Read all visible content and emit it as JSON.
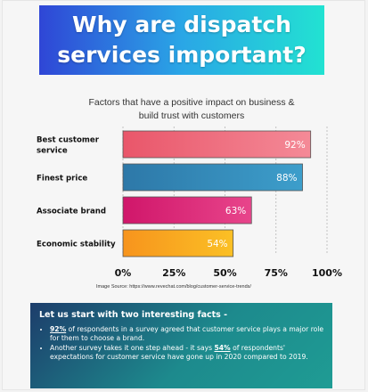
{
  "header": {
    "title": "Why are dispatch\nservices important?",
    "subtitle": "Factors that have a positive impact on business &\nbuild trust with customers"
  },
  "chart_data": {
    "type": "bar",
    "orientation": "horizontal",
    "categories": [
      "Best customer service",
      "Finest price",
      "Associate brand",
      "Economic stability"
    ],
    "category_labels": [
      [
        "Best customer",
        "service"
      ],
      [
        "Finest price"
      ],
      [
        "Associate brand"
      ],
      [
        "Economic stability"
      ]
    ],
    "values": [
      92,
      88,
      63,
      54
    ],
    "data_labels": [
      "92%",
      "88%",
      "63%",
      "54%"
    ],
    "xlim": [
      0,
      100
    ],
    "xticks": [
      0,
      25,
      50,
      75,
      100
    ],
    "xtick_labels": [
      "0%",
      "25%",
      "50%",
      "75%",
      "100%"
    ],
    "grid": "vertical dashed lines",
    "bar_colors": [
      [
        "#e9566a",
        "#f48a97"
      ],
      [
        "#2d78a8",
        "#3d9ecb"
      ],
      [
        "#d0166a",
        "#e8458b"
      ],
      [
        "#f7941d",
        "#fbc025"
      ]
    ]
  },
  "source": "Image Source: https://www.revechat.com/blog/customer-service-trends/",
  "facts": {
    "heading": "Let us start with two interesting facts -",
    "items": [
      {
        "highlight": "92%",
        "text": " of respondents in a survey agreed that customer service plays a major role for them to choose a brand."
      },
      {
        "prefix": "Another survey takes it one step ahead - it says ",
        "highlight": "54%",
        "text": " of respondents' expectations for customer service have gone up in 2020 compared to 2019."
      }
    ]
  }
}
